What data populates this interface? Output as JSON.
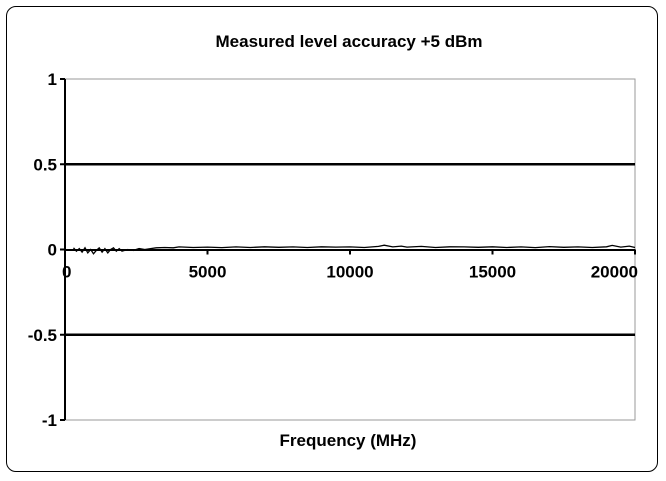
{
  "chart_data": {
    "type": "line",
    "title": "Measured level accuracy +5 dBm",
    "xlabel": "Frequency (MHz)",
    "ylabel": "",
    "xlim": [
      0,
      20000
    ],
    "ylim": [
      -1,
      1
    ],
    "x_ticks": [
      "0",
      "5000",
      "10000",
      "15000",
      "20000"
    ],
    "y_ticks": [
      "1",
      "0.5",
      "0",
      "-0.5",
      "-1"
    ],
    "x_tick_values": [
      0,
      5000,
      10000,
      15000,
      20000
    ],
    "y_tick_values": [
      1,
      0.5,
      0,
      -0.5,
      -1
    ],
    "gridlines_y": [
      0.5,
      -0.5
    ],
    "grid": true,
    "legend": "none",
    "line_color": "#000000",
    "series": [
      {
        "x": [
          300,
          400,
          500,
          600,
          700,
          800,
          900,
          1000,
          1100,
          1200,
          1300,
          1400,
          1500,
          1600,
          1700,
          1800,
          1900,
          2000,
          2200,
          2400,
          2600,
          2800,
          3000,
          3200,
          3500,
          3800,
          4000,
          4500,
          5000,
          5500,
          6000,
          6500,
          7000,
          7500,
          8000,
          8500,
          9000,
          9500,
          10000,
          10500,
          11000,
          11200,
          11500,
          11800,
          12000,
          12500,
          13000,
          13500,
          14000,
          14500,
          15000,
          15500,
          16000,
          16500,
          17000,
          17500,
          18000,
          18500,
          19000,
          19200,
          19500,
          19800,
          20000
        ],
        "y": [
          0.01,
          -0.01,
          0.005,
          -0.015,
          0.01,
          -0.02,
          0.0,
          -0.025,
          -0.005,
          0.01,
          -0.015,
          0.005,
          -0.02,
          0.0,
          0.01,
          -0.01,
          0.005,
          -0.01,
          0.0,
          -0.005,
          0.005,
          0.0,
          0.005,
          0.01,
          0.012,
          0.01,
          0.015,
          0.012,
          0.014,
          0.011,
          0.015,
          0.012,
          0.016,
          0.013,
          0.015,
          0.012,
          0.016,
          0.014,
          0.015,
          0.012,
          0.018,
          0.025,
          0.015,
          0.02,
          0.014,
          0.018,
          0.012,
          0.016,
          0.015,
          0.013,
          0.016,
          0.012,
          0.015,
          0.011,
          0.017,
          0.013,
          0.015,
          0.012,
          0.016,
          0.024,
          0.014,
          0.02,
          0.012
        ]
      }
    ]
  }
}
